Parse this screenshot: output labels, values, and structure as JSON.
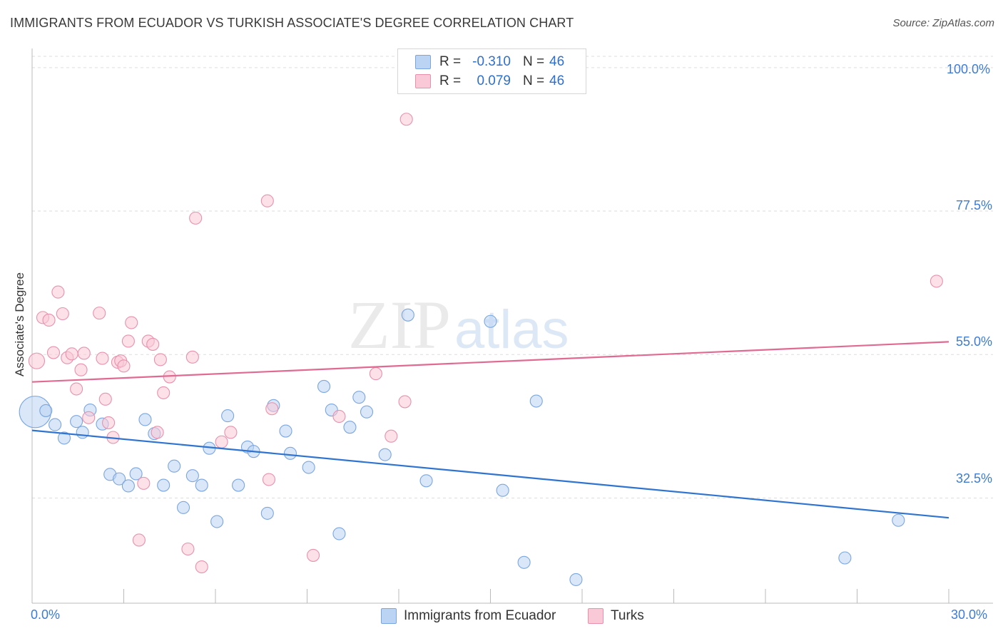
{
  "title": "IMMIGRANTS FROM ECUADOR VS TURKISH ASSOCIATE'S DEGREE CORRELATION CHART",
  "source": "Source: ZipAtlas.com",
  "legend": {
    "rows": [
      {
        "r_label": "R =",
        "r_value": "-0.310",
        "n_label": "N =",
        "n_value": "46"
      },
      {
        "r_label": "R =",
        "r_value": "0.079",
        "n_label": "N =",
        "n_value": "46"
      }
    ]
  },
  "bottom_legend": [
    "Immigrants from Ecuador",
    "Turks"
  ],
  "colors": {
    "blue_fill": "#bcd4f3",
    "blue_stroke": "#7aa6e0",
    "blue_line": "#2f74d0",
    "pink_fill": "#f9c9d7",
    "pink_stroke": "#e891ad",
    "pink_line": "#e06a93",
    "tick_text": "#3d7bd6",
    "grid": "#dddddd"
  },
  "chart_data": {
    "type": "scatter",
    "title": "IMMIGRANTS FROM ECUADOR VS TURKISH ASSOCIATE'S DEGREE CORRELATION CHART",
    "xlabel": "",
    "ylabel": "Associate's Degree",
    "xlim": [
      0,
      30
    ],
    "ylim": [
      16.0,
      103.0
    ],
    "x_tick_labels": [
      "0.0%",
      "30.0%"
    ],
    "y_ticks": [
      32.5,
      55.0,
      77.5,
      100.0
    ],
    "y_tick_labels": [
      "32.5%",
      "55.0%",
      "77.5%",
      "100.0%"
    ],
    "grid": true,
    "legend_position": "top-center",
    "series": [
      {
        "name": "Immigrants from Ecuador",
        "r": -0.31,
        "n": 46,
        "trend": {
          "x": [
            0,
            30
          ],
          "y": [
            43.1,
            29.4
          ]
        },
        "points": [
          [
            0.1,
            46.0,
            2.6
          ],
          [
            0.45,
            46.2,
            1
          ],
          [
            0.75,
            44.0,
            1
          ],
          [
            1.05,
            41.9,
            1
          ],
          [
            1.45,
            44.5,
            1
          ],
          [
            1.65,
            42.8,
            1
          ],
          [
            1.9,
            46.3,
            1
          ],
          [
            2.3,
            44.1,
            1
          ],
          [
            2.55,
            36.2,
            1
          ],
          [
            2.85,
            35.5,
            1
          ],
          [
            3.15,
            34.4,
            1
          ],
          [
            3.4,
            36.3,
            1
          ],
          [
            3.7,
            44.8,
            1
          ],
          [
            4.0,
            42.6,
            1
          ],
          [
            4.3,
            34.5,
            1
          ],
          [
            4.65,
            37.5,
            1
          ],
          [
            4.95,
            31.0,
            1
          ],
          [
            5.25,
            36.0,
            1
          ],
          [
            5.55,
            34.5,
            1
          ],
          [
            5.8,
            40.3,
            1
          ],
          [
            6.05,
            28.8,
            1
          ],
          [
            6.4,
            45.4,
            1
          ],
          [
            6.75,
            34.5,
            1
          ],
          [
            7.05,
            40.5,
            1
          ],
          [
            7.25,
            39.8,
            1
          ],
          [
            7.7,
            30.1,
            1
          ],
          [
            7.9,
            47.0,
            1
          ],
          [
            8.3,
            43.0,
            1
          ],
          [
            8.45,
            39.5,
            1
          ],
          [
            9.05,
            37.3,
            1
          ],
          [
            9.55,
            50.0,
            1
          ],
          [
            9.8,
            46.3,
            1
          ],
          [
            10.05,
            26.9,
            1
          ],
          [
            10.4,
            43.6,
            1
          ],
          [
            10.7,
            48.3,
            1
          ],
          [
            10.95,
            46.0,
            1
          ],
          [
            11.55,
            39.3,
            1
          ],
          [
            12.3,
            61.2,
            1
          ],
          [
            12.9,
            35.2,
            1
          ],
          [
            15.0,
            60.2,
            1
          ],
          [
            15.4,
            33.7,
            1
          ],
          [
            16.1,
            22.4,
            1
          ],
          [
            16.5,
            47.7,
            1
          ],
          [
            17.8,
            19.7,
            1
          ],
          [
            26.6,
            23.1,
            1
          ],
          [
            28.35,
            29.0,
            1
          ]
        ]
      },
      {
        "name": "Turks",
        "r": 0.079,
        "n": 46,
        "trend": {
          "x": [
            0,
            30
          ],
          "y": [
            50.7,
            57.0
          ]
        },
        "points": [
          [
            0.15,
            54.0,
            1.3
          ],
          [
            0.35,
            60.8,
            1
          ],
          [
            0.55,
            60.4,
            1
          ],
          [
            0.7,
            55.3,
            1
          ],
          [
            0.85,
            64.8,
            1
          ],
          [
            1.0,
            61.4,
            1
          ],
          [
            1.15,
            54.5,
            1
          ],
          [
            1.3,
            55.1,
            1
          ],
          [
            1.45,
            49.6,
            1
          ],
          [
            1.6,
            52.6,
            1
          ],
          [
            1.7,
            55.2,
            1
          ],
          [
            1.85,
            45.1,
            1
          ],
          [
            2.2,
            61.5,
            1
          ],
          [
            2.3,
            54.4,
            1
          ],
          [
            2.4,
            48.0,
            1
          ],
          [
            2.5,
            44.3,
            1
          ],
          [
            2.65,
            42.0,
            1
          ],
          [
            2.8,
            53.8,
            1
          ],
          [
            2.9,
            54.0,
            1
          ],
          [
            3.0,
            53.2,
            1
          ],
          [
            3.15,
            57.1,
            1
          ],
          [
            3.25,
            60.0,
            1
          ],
          [
            3.5,
            25.9,
            1
          ],
          [
            3.65,
            34.8,
            1
          ],
          [
            3.8,
            57.1,
            1
          ],
          [
            3.95,
            56.6,
            1
          ],
          [
            4.1,
            42.8,
            1
          ],
          [
            4.2,
            54.2,
            1
          ],
          [
            4.3,
            49.0,
            1
          ],
          [
            4.5,
            51.5,
            1
          ],
          [
            5.1,
            24.5,
            1
          ],
          [
            5.25,
            54.6,
            1
          ],
          [
            5.35,
            76.4,
            1
          ],
          [
            5.55,
            21.7,
            1
          ],
          [
            6.2,
            41.3,
            1
          ],
          [
            6.5,
            42.8,
            1
          ],
          [
            7.7,
            79.1,
            1
          ],
          [
            7.75,
            35.4,
            1
          ],
          [
            9.2,
            23.5,
            1
          ],
          [
            10.05,
            45.3,
            1
          ],
          [
            11.25,
            52.0,
            1
          ],
          [
            11.75,
            42.2,
            1
          ],
          [
            12.2,
            47.6,
            1
          ],
          [
            12.25,
            91.9,
            1
          ],
          [
            29.6,
            66.5,
            1
          ],
          [
            7.85,
            46.5,
            1
          ]
        ]
      }
    ]
  }
}
